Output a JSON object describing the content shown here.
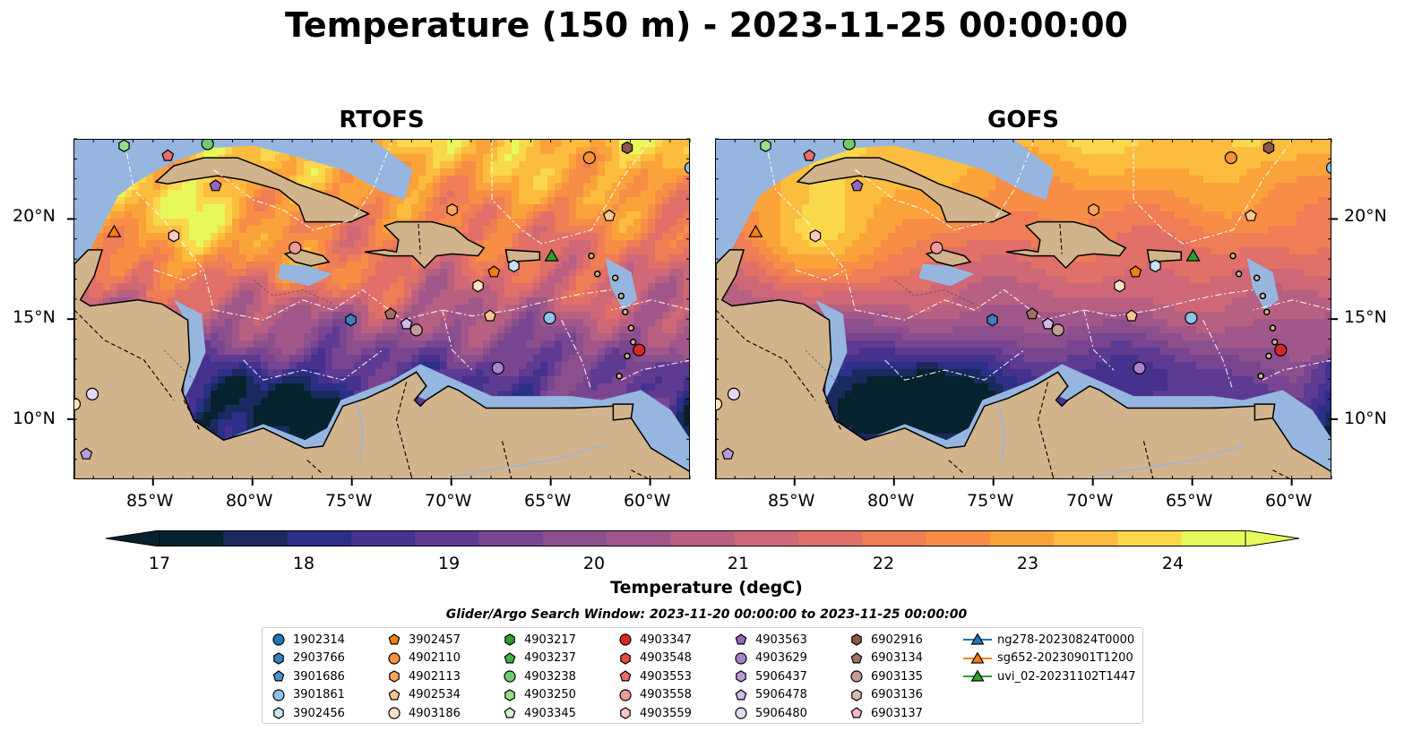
{
  "title": "Temperature (150 m) - 2023-11-25 00:00:00",
  "panels": [
    {
      "name": "RTOFS"
    },
    {
      "name": "GOFS"
    }
  ],
  "axes": {
    "lon_ticks": [
      "85°W",
      "80°W",
      "75°W",
      "70°W",
      "65°W",
      "60°W"
    ],
    "lat_ticks": [
      "20°N",
      "15°N",
      "10°N"
    ],
    "lon_range": [
      -89,
      -58
    ],
    "lat_range": [
      7,
      24
    ]
  },
  "colorbar": {
    "label": "Temperature (degC)",
    "ticks": [
      "17",
      "18",
      "19",
      "20",
      "21",
      "22",
      "23",
      "24"
    ],
    "range": [
      16.5,
      24.5
    ],
    "colors": [
      "#07222f",
      "#1a2a5e",
      "#2c2f87",
      "#47318f",
      "#5e3b93",
      "#7a4590",
      "#8c4f8e",
      "#a2578a",
      "#b86081",
      "#ce6876",
      "#e07068",
      "#ef7d55",
      "#f88e45",
      "#fba33b",
      "#fcbc3e",
      "#f9d84b",
      "#e7f95a"
    ]
  },
  "legend": {
    "title": "Glider/Argo Search Window: 2023-11-20 00:00:00 to 2023-11-25 00:00:00",
    "items": [
      {
        "label": "1902314",
        "color": "#1f77b4",
        "shape": "circle"
      },
      {
        "label": "2903766",
        "color": "#3a7fbe",
        "shape": "hexagon"
      },
      {
        "label": "3901686",
        "color": "#4a90d0",
        "shape": "pentagon"
      },
      {
        "label": "3901861",
        "color": "#8fc3ea",
        "shape": "circle"
      },
      {
        "label": "3902456",
        "color": "#c6e3f7",
        "shape": "hexagon"
      },
      {
        "label": "3902457",
        "color": "#f07f0c",
        "shape": "pentagon"
      },
      {
        "label": "4902110",
        "color": "#f5933a",
        "shape": "circle"
      },
      {
        "label": "4902113",
        "color": "#f8a65c",
        "shape": "hexagon"
      },
      {
        "label": "4902534",
        "color": "#fbc58f",
        "shape": "pentagon"
      },
      {
        "label": "4903186",
        "color": "#fde2c4",
        "shape": "circle"
      },
      {
        "label": "4903217",
        "color": "#2ca02c",
        "shape": "hexagon"
      },
      {
        "label": "4903237",
        "color": "#45b045",
        "shape": "pentagon"
      },
      {
        "label": "4903238",
        "color": "#6fcd6f",
        "shape": "circle"
      },
      {
        "label": "4903250",
        "color": "#98df8a",
        "shape": "hexagon"
      },
      {
        "label": "4903345",
        "color": "#d2f5c8",
        "shape": "pentagon"
      },
      {
        "label": "4903347",
        "color": "#d62728",
        "shape": "circle"
      },
      {
        "label": "4903548",
        "color": "#e04a4a",
        "shape": "hexagon"
      },
      {
        "label": "4903553",
        "color": "#ea6c6c",
        "shape": "pentagon"
      },
      {
        "label": "4903558",
        "color": "#f29a99",
        "shape": "circle"
      },
      {
        "label": "4903559",
        "color": "#f9c7c6",
        "shape": "hexagon"
      },
      {
        "label": "4903563",
        "color": "#9467bd",
        "shape": "pentagon"
      },
      {
        "label": "4903629",
        "color": "#a882cc",
        "shape": "circle"
      },
      {
        "label": "5906437",
        "color": "#bb9cdb",
        "shape": "hexagon"
      },
      {
        "label": "5906478",
        "color": "#d0baea",
        "shape": "pentagon"
      },
      {
        "label": "5906480",
        "color": "#e6d9f6",
        "shape": "circle"
      },
      {
        "label": "6902916",
        "color": "#8c564b",
        "shape": "hexagon"
      },
      {
        "label": "6903134",
        "color": "#a56e63",
        "shape": "pentagon"
      },
      {
        "label": "6903135",
        "color": "#c49c94",
        "shape": "circle"
      },
      {
        "label": "6903136",
        "color": "#e0b8b0",
        "shape": "hexagon"
      },
      {
        "label": "6903137",
        "color": "#f7b6d2",
        "shape": "pentagon"
      },
      {
        "label": "ng278-20230824T0000",
        "color": "#1f77b4",
        "shape": "triangle-line"
      },
      {
        "label": "sg652-20230901T1200",
        "color": "#ff7f0e",
        "shape": "triangle-line"
      },
      {
        "label": "uvi_02-20231102T1447",
        "color": "#2ca02c",
        "shape": "triangle-line"
      }
    ]
  },
  "observations": [
    {
      "lon": -86.5,
      "lat": 23.7,
      "color": "#98df8a",
      "shape": "hexagon"
    },
    {
      "lon": -84.3,
      "lat": 23.2,
      "color": "#ea6c6c",
      "shape": "pentagon"
    },
    {
      "lon": -82.3,
      "lat": 23.8,
      "color": "#6fcd6f",
      "shape": "circle"
    },
    {
      "lon": -81.9,
      "lat": 21.7,
      "color": "#9467bd",
      "shape": "pentagon"
    },
    {
      "lon": -87.0,
      "lat": 19.4,
      "color": "#ff7f0e",
      "shape": "triangle"
    },
    {
      "lon": -84.0,
      "lat": 19.2,
      "color": "#f9c7c6",
      "shape": "hexagon"
    },
    {
      "lon": -77.9,
      "lat": 18.6,
      "color": "#f29a99",
      "shape": "circle"
    },
    {
      "lon": -70.0,
      "lat": 20.5,
      "color": "#f8a65c",
      "shape": "hexagon"
    },
    {
      "lon": -63.1,
      "lat": 23.1,
      "color": "#f5933a",
      "shape": "circle"
    },
    {
      "lon": -61.2,
      "lat": 23.6,
      "color": "#8c564b",
      "shape": "hexagon"
    },
    {
      "lon": -58.0,
      "lat": 22.6,
      "color": "#8fc3ea",
      "shape": "circle"
    },
    {
      "lon": -62.1,
      "lat": 20.2,
      "color": "#fbc58f",
      "shape": "pentagon"
    },
    {
      "lon": -67.9,
      "lat": 17.4,
      "color": "#f07f0c",
      "shape": "pentagon"
    },
    {
      "lon": -66.9,
      "lat": 17.7,
      "color": "#c6e3f7",
      "shape": "hexagon"
    },
    {
      "lon": -65.0,
      "lat": 18.2,
      "color": "#2ca02c",
      "shape": "triangle"
    },
    {
      "lon": -68.7,
      "lat": 16.7,
      "color": "#fde2c4",
      "shape": "hexagon"
    },
    {
      "lon": -68.1,
      "lat": 15.2,
      "color": "#fbc58f",
      "shape": "pentagon"
    },
    {
      "lon": -75.1,
      "lat": 15.0,
      "color": "#3a7fbe",
      "shape": "hexagon"
    },
    {
      "lon": -73.1,
      "lat": 15.3,
      "color": "#a56e63",
      "shape": "pentagon"
    },
    {
      "lon": -72.3,
      "lat": 14.8,
      "color": "#d0baea",
      "shape": "pentagon"
    },
    {
      "lon": -71.8,
      "lat": 14.5,
      "color": "#c49c94",
      "shape": "circle"
    },
    {
      "lon": -65.1,
      "lat": 15.1,
      "color": "#8fc3ea",
      "shape": "circle"
    },
    {
      "lon": -60.6,
      "lat": 13.5,
      "color": "#d62728",
      "shape": "circle"
    },
    {
      "lon": -67.7,
      "lat": 12.6,
      "color": "#a882cc",
      "shape": "circle"
    },
    {
      "lon": -88.1,
      "lat": 11.3,
      "color": "#e6d9f6",
      "shape": "circle"
    },
    {
      "lon": -89.0,
      "lat": 10.8,
      "color": "#fde2c4",
      "shape": "circle"
    },
    {
      "lon": -88.4,
      "lat": 8.3,
      "color": "#bb9cdb",
      "shape": "pentagon"
    }
  ]
}
